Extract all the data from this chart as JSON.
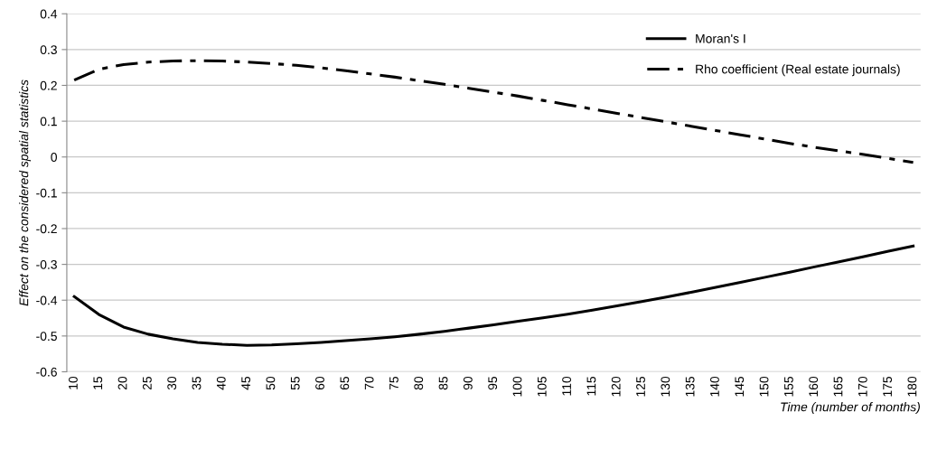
{
  "chart_data": {
    "type": "line",
    "xlabel": "Time (number of months)",
    "ylabel": "Effect on the considered spatial statistics",
    "categories": [
      "10",
      "15",
      "20",
      "25",
      "30",
      "35",
      "40",
      "45",
      "50",
      "55",
      "60",
      "65",
      "70",
      "75",
      "80",
      "85",
      "90",
      "95",
      "100",
      "105",
      "110",
      "115",
      "120",
      "125",
      "130",
      "135",
      "140",
      "145",
      "150",
      "155",
      "160",
      "165",
      "170",
      "175",
      "180"
    ],
    "series": [
      {
        "name": "Moran's I",
        "color": "#000000",
        "line_style": "solid",
        "values": [
          -0.39,
          -0.44,
          -0.475,
          -0.495,
          -0.508,
          -0.518,
          -0.523,
          -0.526,
          -0.525,
          -0.522,
          -0.518,
          -0.513,
          -0.508,
          -0.502,
          -0.495,
          -0.487,
          -0.478,
          -0.469,
          -0.459,
          -0.449,
          -0.439,
          -0.428,
          -0.416,
          -0.404,
          -0.391,
          -0.378,
          -0.364,
          -0.35,
          -0.336,
          -0.322,
          -0.307,
          -0.293,
          -0.278,
          -0.263,
          -0.249
        ]
      },
      {
        "name": "Rho coefficient (Real estate journals)",
        "color": "#000000",
        "line_style": "dashdot",
        "values": [
          0.215,
          0.245,
          0.258,
          0.265,
          0.268,
          0.269,
          0.268,
          0.265,
          0.261,
          0.256,
          0.249,
          0.241,
          0.232,
          0.223,
          0.213,
          0.203,
          0.192,
          0.181,
          0.17,
          0.158,
          0.146,
          0.134,
          0.122,
          0.11,
          0.098,
          0.086,
          0.074,
          0.062,
          0.05,
          0.038,
          0.027,
          0.017,
          0.007,
          -0.004,
          -0.015
        ]
      }
    ],
    "ylim": [
      -0.6,
      0.4
    ],
    "yticks": [
      -0.6,
      -0.5,
      -0.4,
      -0.3,
      -0.2,
      -0.1,
      0,
      0.1,
      0.2,
      0.3,
      0.4
    ],
    "grid": "y",
    "legend": "top right",
    "marker": "none"
  }
}
